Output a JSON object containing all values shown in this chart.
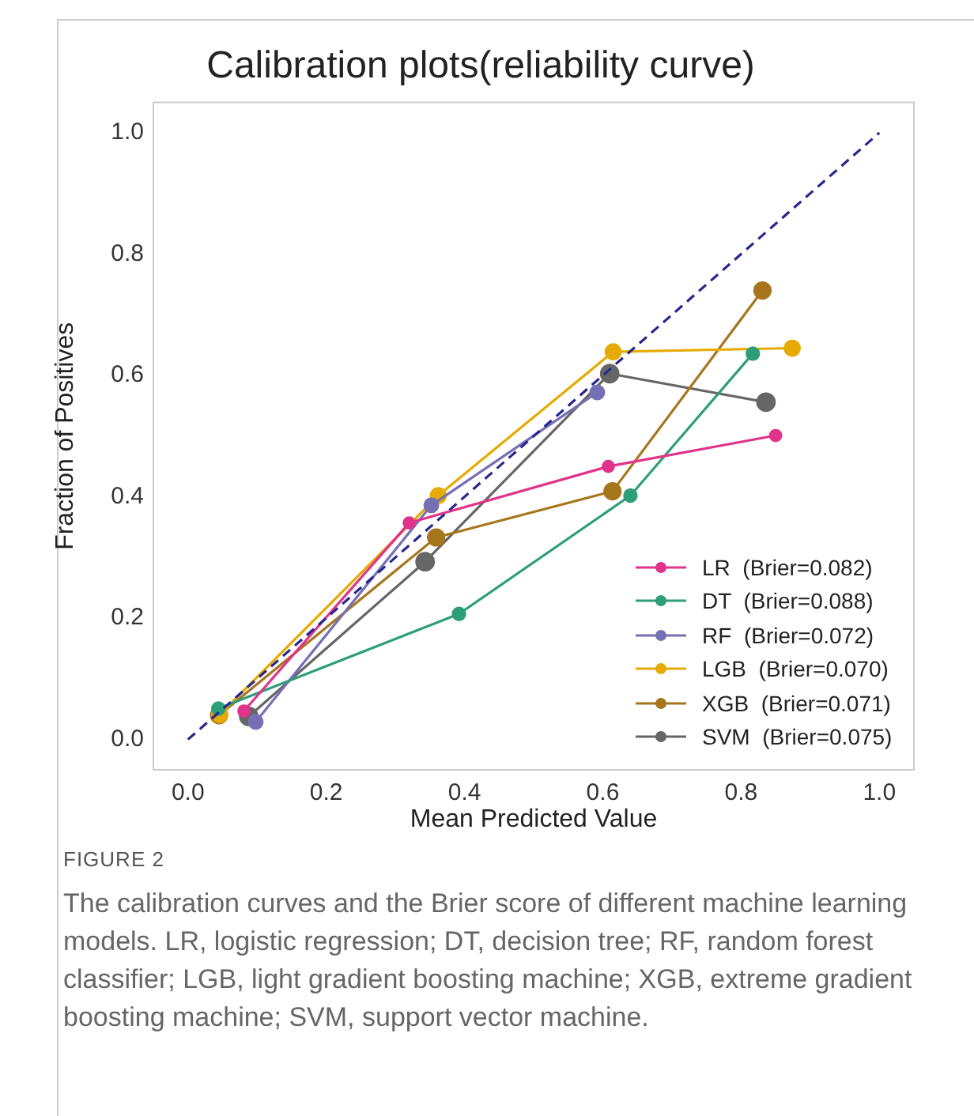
{
  "chart_data": {
    "type": "line",
    "title": "Calibration plots(reliability curve)",
    "xlabel": "Mean Predicted Value",
    "ylabel": "Fraction of Positives",
    "xlim": [
      -0.05,
      1.05
    ],
    "ylim": [
      -0.05,
      1.05
    ],
    "xticks": [
      {
        "value": 0,
        "label": "0.0"
      },
      0.2,
      0.4,
      0.6,
      0.8,
      {
        "value": 1,
        "label": "1.0"
      }
    ],
    "yticks": [
      {
        "value": 0,
        "label": "0.0"
      },
      0.2,
      0.4,
      0.6,
      0.8,
      {
        "value": 1,
        "label": "1.0"
      }
    ],
    "grid": false,
    "legend": "bottom right",
    "marker": "circle",
    "series": [
      {
        "x": [
          0,
          1
        ],
        "values": [
          0,
          1
        ],
        "color": "#27278f",
        "line_style": "dashed",
        "marker": "none"
      },
      {
        "name": "LR  (Brier=0.082)",
        "color": "#e0338a",
        "x": [
          0.081,
          0.32,
          0.608,
          0.85
        ],
        "values": [
          0.047,
          0.357,
          0.45,
          0.501
        ]
      },
      {
        "name": "DT  (Brier=0.088)",
        "color": "#2e9e78",
        "x": [
          0.044,
          0.392,
          0.64,
          0.817
        ],
        "values": [
          0.051,
          0.207,
          0.402,
          0.636
        ]
      },
      {
        "name": "RF  (Brier=0.072)",
        "color": "#7570b3",
        "x": [
          0.098,
          0.352,
          0.592
        ],
        "values": [
          0.029,
          0.386,
          0.572
        ]
      },
      {
        "name": "LGB  (Brier=0.070)",
        "color": "#e6ab02",
        "x": [
          0.046,
          0.362,
          0.615,
          0.874
        ],
        "values": [
          0.041,
          0.402,
          0.639,
          0.645
        ]
      },
      {
        "name": "XGB  (Brier=0.071)",
        "color": "#a6761d",
        "x": [
          0.045,
          0.359,
          0.614,
          0.831
        ],
        "values": [
          0.04,
          0.333,
          0.409,
          0.74
        ]
      },
      {
        "name": "SVM  (Brier=0.075)",
        "color": "#666666",
        "x": [
          0.088,
          0.343,
          0.61,
          0.836
        ],
        "values": [
          0.038,
          0.293,
          0.603,
          0.556
        ]
      }
    ],
    "annotations": [
      "FIGURE 2",
      "The calibration curves and the Brier score of different machine learning models. LR, logistic regression; DT, decision tree; RF, random forest classifier; LGB, light gradient boosting machine; XGB, extreme gradient boosting machine; SVM, support vector machine."
    ]
  }
}
